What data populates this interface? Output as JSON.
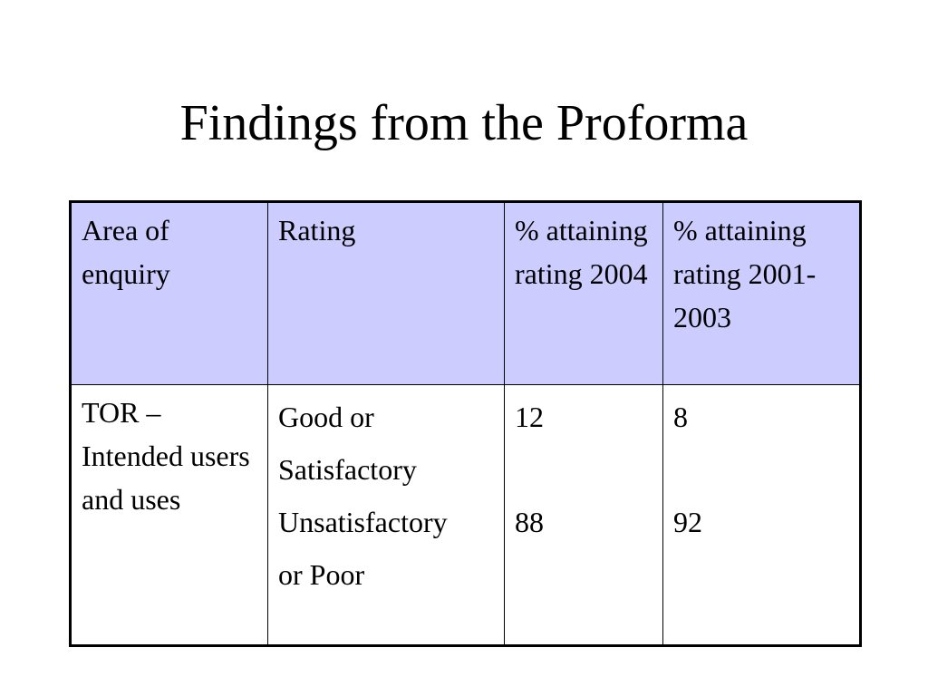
{
  "slide": {
    "title": "Findings from the Proforma"
  },
  "table": {
    "headers": [
      "Area of enquiry",
      "Rating",
      "% attaining rating 2004",
      "% attaining rating 2001-2003"
    ],
    "row": {
      "area": "TOR – Intended users and uses",
      "ratings": [
        "Good or",
        "Satisfactory",
        "Unsatisfactory",
        "or Poor"
      ],
      "values_2004": [
        "12",
        "88"
      ],
      "values_2001_2003": [
        "8",
        "92"
      ]
    }
  },
  "colors": {
    "header_background": "#ccccff",
    "border": "#000000",
    "text": "#000000",
    "background": "#ffffff"
  }
}
